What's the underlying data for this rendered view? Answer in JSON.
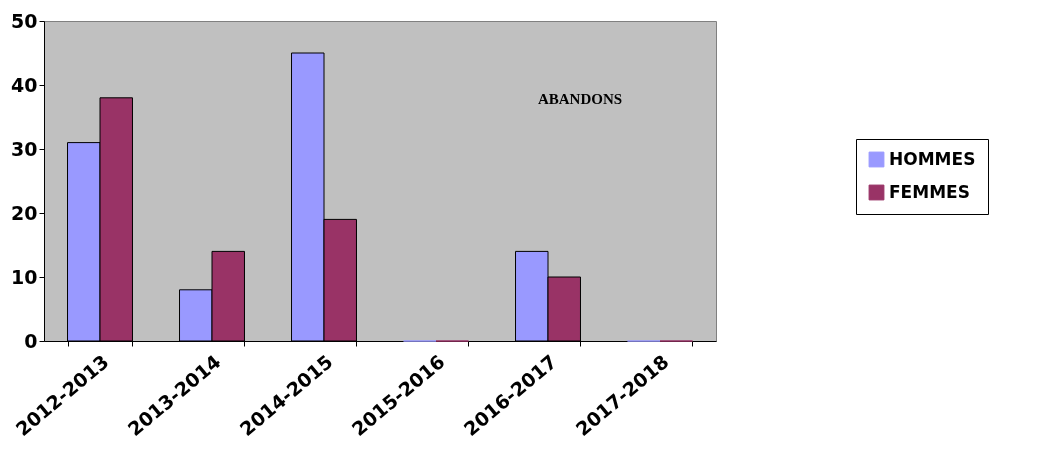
{
  "chart_data": {
    "type": "bar",
    "title": "ABANDONS",
    "categories": [
      "2012-2013",
      "2013-2014",
      "2014-2015",
      "2015-2016",
      "2016-2017",
      "2017-2018"
    ],
    "series": [
      {
        "name": "HOMMES",
        "color": "#9999ff",
        "values": [
          31,
          8,
          45,
          0,
          14,
          0
        ]
      },
      {
        "name": "FEMMES",
        "color": "#993366",
        "values": [
          38,
          14,
          19,
          0,
          10,
          0
        ]
      }
    ],
    "ylim": [
      0,
      50
    ],
    "yticks": [
      0,
      10,
      20,
      30,
      40,
      50
    ],
    "grid": false,
    "legend": "right"
  }
}
